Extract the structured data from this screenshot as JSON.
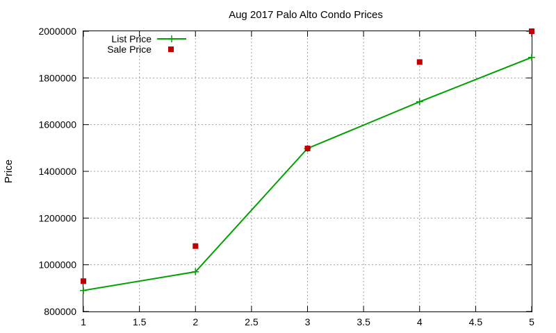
{
  "chart_data": {
    "type": "line",
    "title": "Aug 2017 Palo Alto Condo Prices",
    "xlabel": "",
    "ylabel": "Price",
    "xlim": [
      1,
      5
    ],
    "ylim": [
      800000,
      2000000
    ],
    "x_ticks": [
      1,
      1.5,
      2,
      2.5,
      3,
      3.5,
      4,
      4.5,
      5
    ],
    "y_ticks": [
      800000,
      1000000,
      1200000,
      1400000,
      1600000,
      1800000,
      2000000
    ],
    "x_tick_labels": [
      "1",
      "1.5",
      "2",
      "2.5",
      "3",
      "3.5",
      "4",
      "4.5",
      "5"
    ],
    "y_tick_labels": [
      "800000",
      "1000000",
      "1200000",
      "1400000",
      "1600000",
      "1800000",
      "2000000"
    ],
    "grid": true,
    "legend_position": "top-left",
    "series": [
      {
        "name": "List Price",
        "style": "lines+points",
        "marker": "plus",
        "color": "#00a000",
        "x": [
          1,
          2,
          3,
          4,
          5
        ],
        "y": [
          890000,
          970000,
          1498000,
          1698000,
          1888000
        ]
      },
      {
        "name": "Sale Price",
        "style": "points",
        "marker": "square",
        "color": "#c00000",
        "x": [
          1,
          2,
          3,
          4,
          5
        ],
        "y": [
          930000,
          1080000,
          1498000,
          1868000,
          2000000
        ]
      }
    ]
  }
}
